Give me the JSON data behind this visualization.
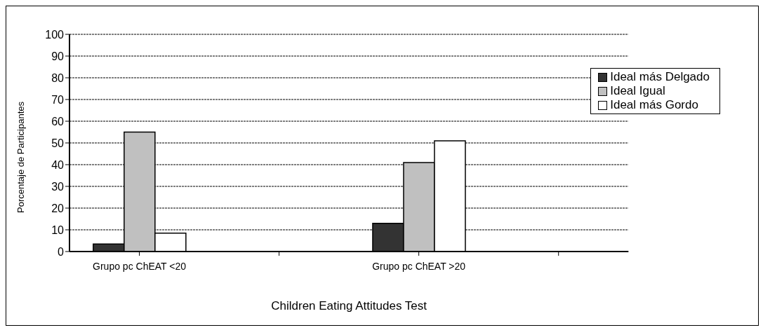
{
  "chart_data": {
    "type": "bar",
    "xlabel": "Children Eating Attitudes Test",
    "ylabel": "Porcentaje de Participantes",
    "categories": [
      "Grupo pc ChEAT <20",
      null,
      "Grupo pc ChEAT >20",
      null
    ],
    "series": [
      {
        "name": "Ideal más Delgado",
        "color": "#333333",
        "values": [
          3.5,
          null,
          13,
          null
        ]
      },
      {
        "name": "Ideal Igual",
        "color": "#c0c0c0",
        "values": [
          55,
          null,
          41,
          null
        ]
      },
      {
        "name": "Ideal más Gordo",
        "color": "#ffffff",
        "values": [
          8.5,
          null,
          51,
          null
        ]
      }
    ],
    "ylim": [
      0,
      100
    ],
    "yticks": [
      0,
      10,
      20,
      30,
      40,
      50,
      60,
      70,
      80,
      90,
      100
    ],
    "grid": "y",
    "legend": "top right"
  }
}
